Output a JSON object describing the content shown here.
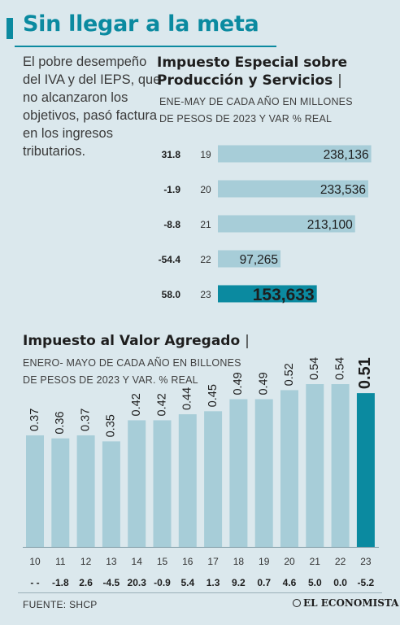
{
  "header": {
    "title": "Sin llegar a la meta",
    "intro": "El pobre desempeño del IVA y del IEPS, que no alcanzaron los objetivos, pasó factura en los ingresos tributarios."
  },
  "colors": {
    "accent": "#0b8aa0",
    "bar_light": "#a7cdd8",
    "background": "#dbe8ed"
  },
  "chart_data": [
    {
      "type": "bar",
      "orientation": "horizontal",
      "title_line1": "Impuesto Especial sobre",
      "title_line2": "Producción y Servicios",
      "title_suffix": "|",
      "subtitle_line1": "ENE-MAY DE CADA AÑO EN MILLONES",
      "subtitle_line2": "DE PESOS DE 2023 Y VAR % REAL",
      "categories": [
        "19",
        "20",
        "21",
        "22",
        "23"
      ],
      "values": [
        238136,
        233536,
        213100,
        97265,
        153633
      ],
      "value_labels": [
        "238,136",
        "233,536",
        "213,100",
        "97,265",
        "153,633"
      ],
      "var_labels": [
        "31.8",
        "-1.9",
        "-8.8",
        "-54.4",
        "58.0"
      ],
      "highlight_index": 4,
      "xlim": [
        0,
        250000
      ]
    },
    {
      "type": "bar",
      "orientation": "vertical",
      "title": "Impuesto al Valor Agregado",
      "title_suffix": "|",
      "subtitle_line1": "ENERO- MAYO DE CADA AÑO EN BILLONES",
      "subtitle_line2": "DE PESOS DE 2023 Y VAR. % REAL",
      "categories": [
        "10",
        "11",
        "12",
        "13",
        "14",
        "15",
        "16",
        "17",
        "18",
        "19",
        "20",
        "21",
        "22",
        "23"
      ],
      "values": [
        0.37,
        0.36,
        0.37,
        0.35,
        0.42,
        0.42,
        0.44,
        0.45,
        0.49,
        0.49,
        0.52,
        0.54,
        0.54,
        0.51
      ],
      "value_labels": [
        "0.37",
        "0.36",
        "0.37",
        "0.35",
        "0.42",
        "0.42",
        "0.44",
        "0.45",
        "0.49",
        "0.49",
        "0.52",
        "0.54",
        "0.54",
        "0.51"
      ],
      "var_labels": [
        "- -",
        "-1.8",
        "2.6",
        "-4.5",
        "20.3",
        "-0.9",
        "5.4",
        "1.3",
        "9.2",
        "0.7",
        "4.6",
        "5.0",
        "0.0",
        "-5.2"
      ],
      "highlight_index": 13,
      "ylim": [
        0,
        0.54
      ]
    }
  ],
  "footer": {
    "source": "FUENTE: SHCP",
    "logo": "EL ECONOMISTA"
  }
}
